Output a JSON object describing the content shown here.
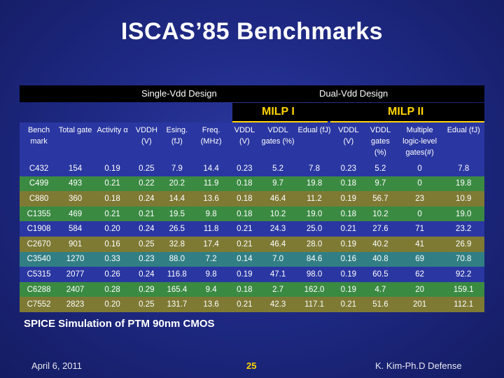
{
  "title": "ISCAS’85 Benchmarks",
  "groups": {
    "single": "Single-Vdd Design",
    "dual": "Dual-Vdd Design"
  },
  "milp": {
    "one": "MILP I",
    "two": "MILP II"
  },
  "columns": [
    "Bench mark",
    "Total gate",
    "Activity α",
    "VDDH (V)",
    "Esing. (fJ)",
    "Freq. (MHz)",
    "VDDL (V)",
    "VDDL gates (%)",
    "Edual (fJ)",
    "VDDL (V)",
    "VDDL gates (%)",
    "Multiple logic-level gates(#)",
    "Edual (fJ)"
  ],
  "rows": [
    [
      "C432",
      "154",
      "0.19",
      "0.25",
      "7.9",
      "14.4",
      "0.23",
      "5.2",
      "7.8",
      "0.23",
      "5.2",
      "0",
      "7.8"
    ],
    [
      "C499",
      "493",
      "0.21",
      "0.22",
      "20.2",
      "11.9",
      "0.18",
      "9.7",
      "19.8",
      "0.18",
      "9.7",
      "0",
      "19.8"
    ],
    [
      "C880",
      "360",
      "0.18",
      "0.24",
      "14.4",
      "13.6",
      "0.18",
      "46.4",
      "11.2",
      "0.19",
      "56.7",
      "23",
      "10.9"
    ],
    [
      "C1355",
      "469",
      "0.21",
      "0.21",
      "19.5",
      "9.8",
      "0.18",
      "10.2",
      "19.0",
      "0.18",
      "10.2",
      "0",
      "19.0"
    ],
    [
      "C1908",
      "584",
      "0.20",
      "0.24",
      "26.5",
      "11.8",
      "0.21",
      "24.3",
      "25.0",
      "0.21",
      "27.6",
      "71",
      "23.2"
    ],
    [
      "C2670",
      "901",
      "0.16",
      "0.25",
      "32.8",
      "17.4",
      "0.21",
      "46.4",
      "28.0",
      "0.19",
      "40.2",
      "41",
      "26.9"
    ],
    [
      "C3540",
      "1270",
      "0.33",
      "0.23",
      "88.0",
      "7.2",
      "0.14",
      "7.0",
      "84.6",
      "0.16",
      "40.8",
      "69",
      "70.8"
    ],
    [
      "C5315",
      "2077",
      "0.26",
      "0.24",
      "116.8",
      "9.8",
      "0.19",
      "47.1",
      "98.0",
      "0.19",
      "60.5",
      "62",
      "92.2"
    ],
    [
      "C6288",
      "2407",
      "0.28",
      "0.29",
      "165.4",
      "9.4",
      "0.18",
      "2.7",
      "162.0",
      "0.19",
      "4.7",
      "20",
      "159.1"
    ],
    [
      "C7552",
      "2823",
      "0.20",
      "0.25",
      "131.7",
      "13.6",
      "0.21",
      "42.3",
      "117.1",
      "0.21",
      "51.6",
      "201",
      "112.1"
    ]
  ],
  "note": "SPICE Simulation of PTM 90nm CMOS",
  "footer": {
    "date": "April 6, 2011",
    "page": "25",
    "author": "K. Kim-Ph.D Defense"
  }
}
